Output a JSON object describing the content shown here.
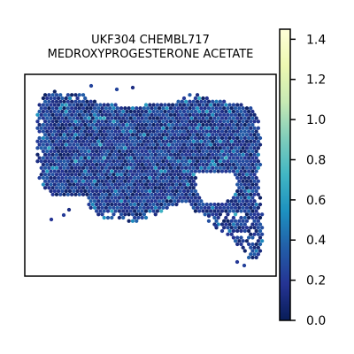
{
  "chart_data": {
    "type": "scatter",
    "subtype": "hexbin spatial expression map",
    "title_line1": "UKF304 CHEMBL717",
    "title_line2": "MEDROXYPROGESTERONE ACETATE",
    "xlabel": "",
    "ylabel": "",
    "colorbar": {
      "colormap": "YlGnBu_r",
      "range": [
        0.0,
        1.45
      ],
      "ticks": [
        0.0,
        0.2,
        0.4,
        0.6,
        0.8,
        1.0,
        1.2,
        1.4
      ],
      "tick_labels": [
        "0.0",
        "0.2",
        "0.4",
        "0.6",
        "0.8",
        "1.0",
        "1.2",
        "1.4"
      ]
    },
    "value_distribution": {
      "typical_range": [
        0.05,
        0.45
      ],
      "sparse_high_values": [
        0.5,
        0.7
      ]
    }
  }
}
